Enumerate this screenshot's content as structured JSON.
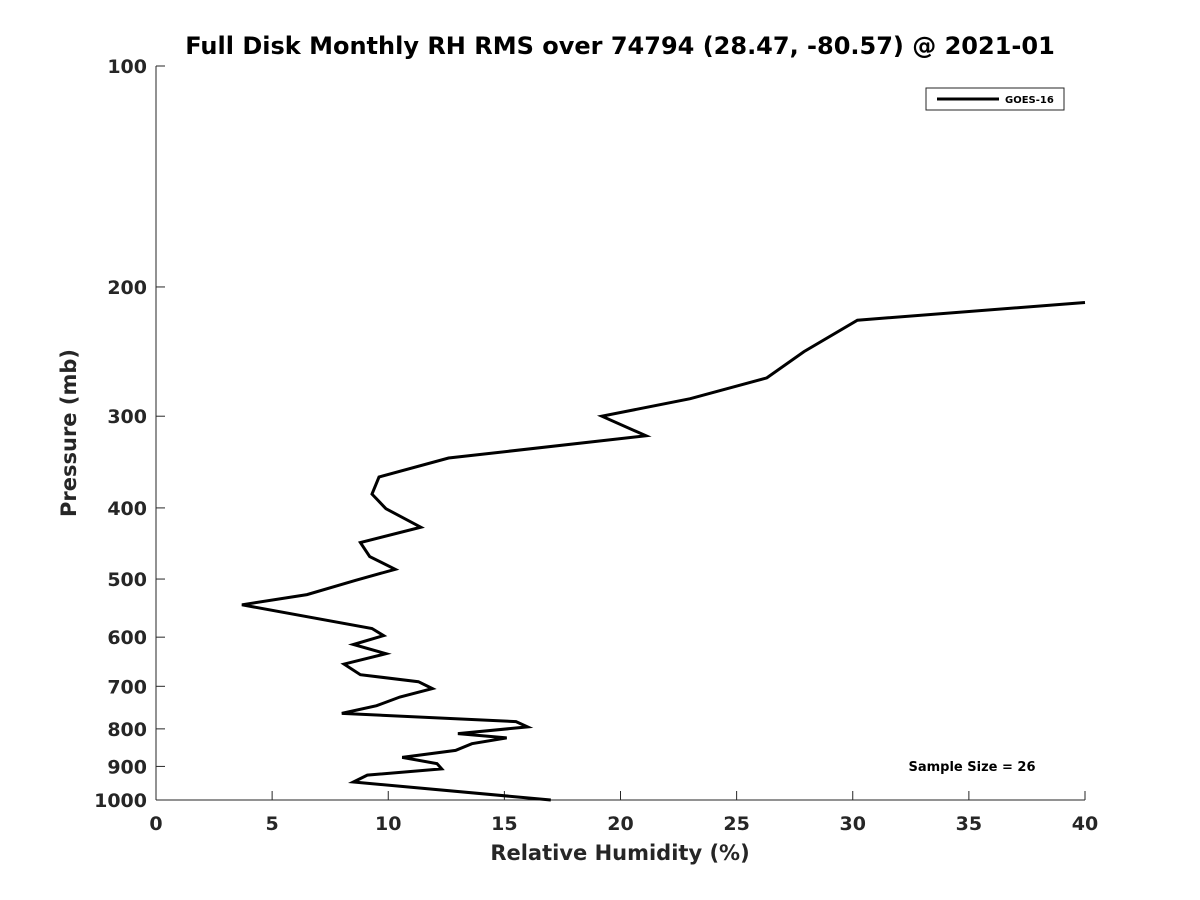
{
  "chart_data": {
    "type": "line",
    "title": "Full Disk Monthly RH RMS over 74794 (28.47, -80.57) @ 2021-01",
    "xlabel": "Relative Humidity (%)",
    "ylabel": "Pressure (mb)",
    "xlim": [
      0,
      40
    ],
    "ylim": [
      100,
      1000
    ],
    "y_scale": "log",
    "y_reversed": true,
    "x_ticks": [
      0,
      5,
      10,
      15,
      20,
      25,
      30,
      35,
      40
    ],
    "x_tick_labels": [
      "0",
      "5",
      "10",
      "15",
      "20",
      "25",
      "30",
      "35",
      "40"
    ],
    "y_ticks": [
      100,
      200,
      300,
      400,
      500,
      600,
      700,
      800,
      900,
      1000
    ],
    "y_tick_labels": [
      "100",
      "200",
      "300",
      "400",
      "500",
      "600",
      "700",
      "800",
      "900",
      "1000"
    ],
    "grid": false,
    "legend": {
      "position": "top-right",
      "entries": [
        "GOES-16"
      ]
    },
    "annotation": "Sample Size = 26",
    "series": [
      {
        "name": "GOES-16",
        "color": "#000000",
        "points": [
          [
            40.0,
            210
          ],
          [
            30.2,
            222
          ],
          [
            27.9,
            245
          ],
          [
            26.3,
            266
          ],
          [
            23.0,
            284
          ],
          [
            19.2,
            300
          ],
          [
            21.1,
            319
          ],
          [
            12.6,
            342
          ],
          [
            9.6,
            363
          ],
          [
            9.3,
            383
          ],
          [
            9.9,
            401
          ],
          [
            11.4,
            425
          ],
          [
            8.8,
            446
          ],
          [
            9.2,
            466
          ],
          [
            10.3,
            485
          ],
          [
            8.6,
            502
          ],
          [
            6.5,
            525
          ],
          [
            3.7,
            542
          ],
          [
            9.3,
            584
          ],
          [
            9.8,
            597
          ],
          [
            8.5,
            614
          ],
          [
            9.9,
            632
          ],
          [
            8.1,
            653
          ],
          [
            8.8,
            675
          ],
          [
            11.3,
            690
          ],
          [
            11.9,
            705
          ],
          [
            10.5,
            724
          ],
          [
            9.5,
            744
          ],
          [
            8.0,
            762
          ],
          [
            15.5,
            782
          ],
          [
            16.0,
            795
          ],
          [
            13.0,
            812
          ],
          [
            15.1,
            823
          ],
          [
            13.6,
            838
          ],
          [
            12.9,
            856
          ],
          [
            10.6,
            875
          ],
          [
            12.1,
            892
          ],
          [
            12.3,
            907
          ],
          [
            9.1,
            925
          ],
          [
            8.5,
            945
          ],
          [
            17.0,
            1000
          ]
        ]
      }
    ]
  }
}
